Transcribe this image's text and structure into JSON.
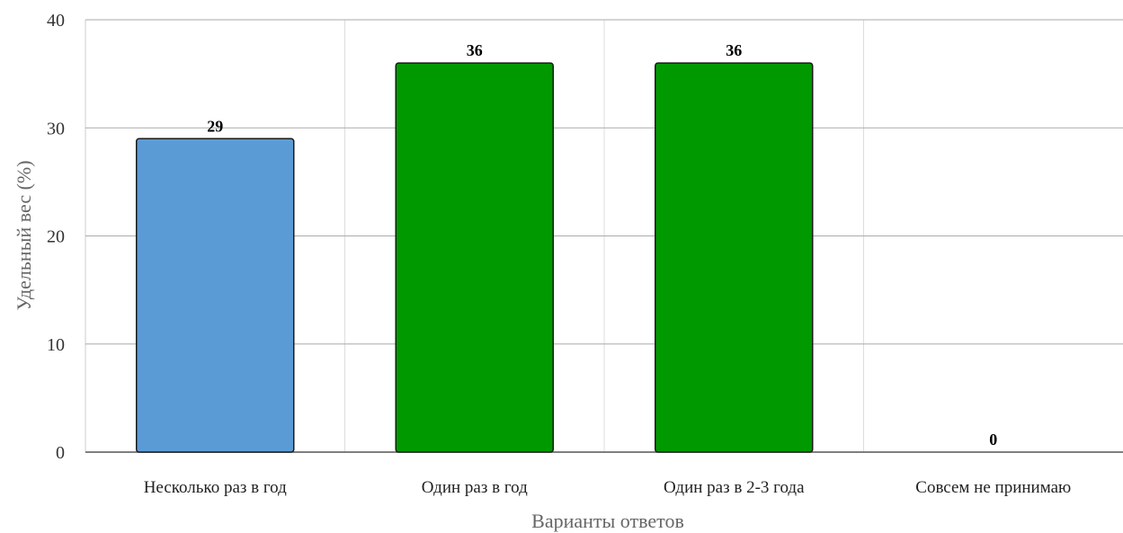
{
  "chart_data": {
    "type": "bar",
    "title": "",
    "xlabel": "Варианты ответов",
    "ylabel": "Удельный вес (%)",
    "categories": [
      "Несколько раз в год",
      "Один раз в год",
      "Один раз в 2-3 года",
      "Совсем не принимаю"
    ],
    "values": [
      29,
      36,
      36,
      0
    ],
    "data_labels": [
      "29",
      "36",
      "36",
      "0"
    ],
    "colors": [
      "#5b9bd5",
      "#009900",
      "#009900",
      "#009900"
    ],
    "ylim": [
      0,
      40
    ],
    "yticks": [
      0,
      10,
      20,
      30,
      40
    ],
    "ytick_labels": [
      "0",
      "10",
      "20",
      "30",
      "40"
    ],
    "grid": true,
    "legend": "none"
  }
}
